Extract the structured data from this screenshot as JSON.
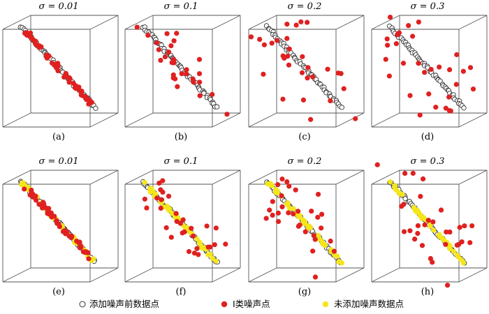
{
  "panels": [
    {
      "title": "σ = 0.01",
      "label": "(a)",
      "mode": "type1"
    },
    {
      "title": "σ = 0.1",
      "label": "(b)",
      "mode": "type1"
    },
    {
      "title": "σ = 0.2",
      "label": "(c)",
      "mode": "type1"
    },
    {
      "title": "σ = 0.3",
      "label": "(d)",
      "mode": "type1"
    },
    {
      "title": "σ = 0.01",
      "label": "(e)",
      "mode": "mixed"
    },
    {
      "title": "σ = 0.1",
      "label": "(f)",
      "mode": "mixed"
    },
    {
      "title": "σ = 0.2",
      "label": "(g)",
      "mode": "mixed"
    },
    {
      "title": "σ = 0.3",
      "label": "(h)",
      "mode": "mixed"
    }
  ],
  "legend": {
    "clean": "添加噪声前数据点",
    "noise": "Ⅰ类噪声点",
    "unnoised": "未添加噪声数据点"
  },
  "colors": {
    "noise": "#e02020",
    "unnoised": "#f5e61a",
    "edge": "#555555",
    "clean_outline": "#333333"
  }
}
